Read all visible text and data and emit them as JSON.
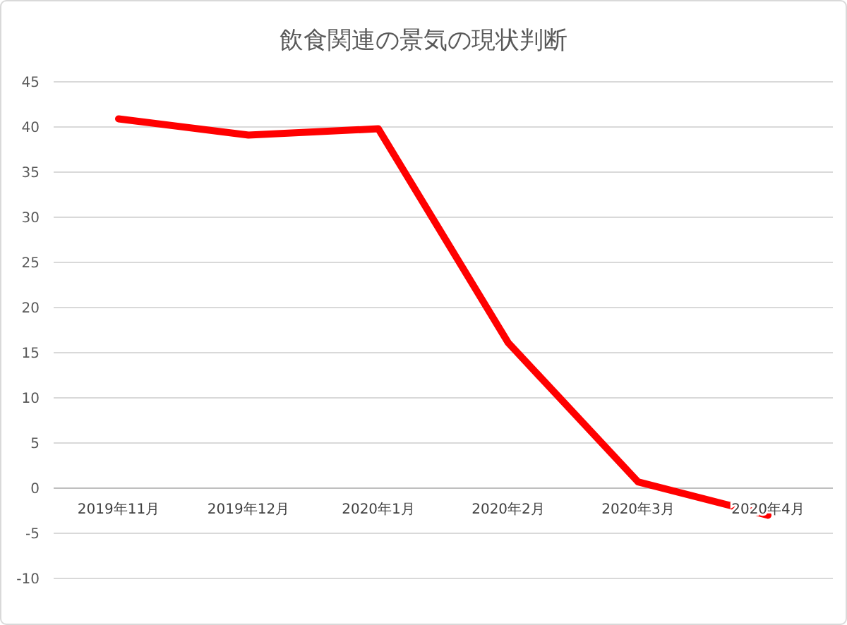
{
  "chart_data": {
    "type": "line",
    "title": "飲食関連の景気の現状判断",
    "categories": [
      "2019年11月",
      "2019年12月",
      "2020年1月",
      "2020年2月",
      "2020年3月",
      "2020年4月"
    ],
    "series": [
      {
        "color": "#ff0000",
        "values": [
          40.9,
          39.1,
          39.8,
          16.1,
          0.7,
          -3.0
        ]
      }
    ],
    "ylim": [
      -10,
      45
    ],
    "yticks": [
      -10,
      -5,
      0,
      5,
      10,
      15,
      20,
      25,
      30,
      35,
      40,
      45
    ],
    "grid": "y",
    "marker": "none",
    "line_style": "solid"
  }
}
